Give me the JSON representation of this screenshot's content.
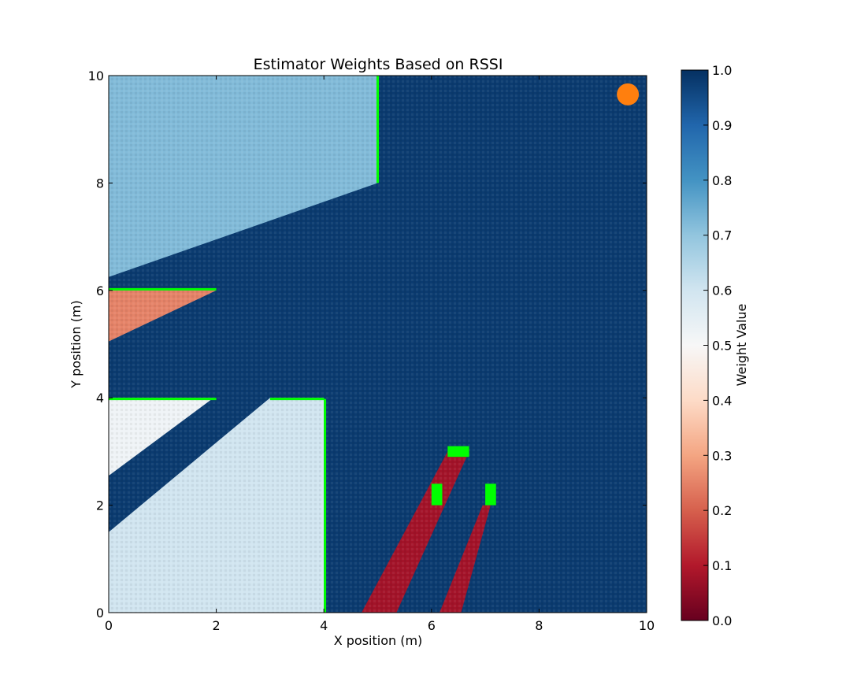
{
  "chart_data": {
    "type": "heatmap",
    "title": "Estimator Weights Based on RSSI",
    "xlabel": "X position (m)",
    "ylabel": "Y position (m)",
    "xlim": [
      0,
      10
    ],
    "ylim": [
      0,
      10
    ],
    "x_ticks": [
      0,
      2,
      4,
      6,
      8,
      10
    ],
    "y_ticks": [
      0,
      2,
      4,
      6,
      8,
      10
    ],
    "colormap": "RdBu",
    "colorbar": {
      "label": "Weight Value",
      "range": [
        0.0,
        1.0
      ],
      "ticks": [
        0.0,
        0.1,
        0.2,
        0.3,
        0.4,
        0.5,
        0.6,
        0.7,
        0.8,
        0.9,
        1.0
      ],
      "tick_labels": [
        "0.0",
        "0.1",
        "0.2",
        "0.3",
        "0.4",
        "0.5",
        "0.6",
        "0.7",
        "0.8",
        "0.9",
        "1.0"
      ]
    },
    "background_weight": 0.98,
    "regions": [
      {
        "name": "upper-left-shadow",
        "weight": 0.72,
        "polygon": [
          [
            0,
            6.25
          ],
          [
            5,
            8
          ],
          [
            5,
            10
          ],
          [
            0,
            10
          ]
        ]
      },
      {
        "name": "left-mid-shadow",
        "weight": 0.25,
        "polygon": [
          [
            0,
            5.05
          ],
          [
            2,
            6
          ],
          [
            0,
            6
          ]
        ]
      },
      {
        "name": "lower-left-upper-wedge",
        "weight": 0.52,
        "polygon": [
          [
            0,
            2.55
          ],
          [
            1.95,
            4
          ],
          [
            0,
            4
          ]
        ]
      },
      {
        "name": "lower-left-main-shadow",
        "weight": 0.6,
        "polygon": [
          [
            0,
            1.5
          ],
          [
            3,
            4
          ],
          [
            4,
            4
          ],
          [
            4,
            0
          ],
          [
            0,
            0
          ]
        ]
      },
      {
        "name": "diagonal-stripe-1",
        "weight": 0.08,
        "polygon": [
          [
            4.7,
            0
          ],
          [
            5.35,
            0
          ],
          [
            6.7,
            3.0
          ],
          [
            6.3,
            3.0
          ]
        ]
      },
      {
        "name": "diagonal-stripe-2",
        "weight": 0.08,
        "polygon": [
          [
            6.15,
            0
          ],
          [
            6.55,
            0
          ],
          [
            7.1,
            2.0
          ],
          [
            6.95,
            2.0
          ]
        ]
      }
    ],
    "walls": [
      {
        "points": [
          [
            5,
            8
          ],
          [
            5,
            10
          ]
        ]
      },
      {
        "points": [
          [
            0,
            6.02
          ],
          [
            2,
            6.02
          ]
        ]
      },
      {
        "points": [
          [
            0,
            3.98
          ],
          [
            2,
            3.98
          ]
        ]
      },
      {
        "points": [
          [
            3,
            3.98
          ],
          [
            4,
            3.98
          ]
        ]
      },
      {
        "points": [
          [
            4.02,
            0
          ],
          [
            4.02,
            3.98
          ]
        ]
      }
    ],
    "wall_blocks": [
      {
        "x": [
          6.3,
          6.7
        ],
        "y": [
          2.9,
          3.1
        ]
      },
      {
        "x": [
          6.0,
          6.2
        ],
        "y": [
          2.0,
          2.4
        ]
      },
      {
        "x": [
          7.0,
          7.2
        ],
        "y": [
          2.0,
          2.4
        ]
      }
    ],
    "wall_color": "#00ff00",
    "transmitter": {
      "x": 9.65,
      "y": 9.65,
      "color": "#ff7f0e"
    }
  }
}
